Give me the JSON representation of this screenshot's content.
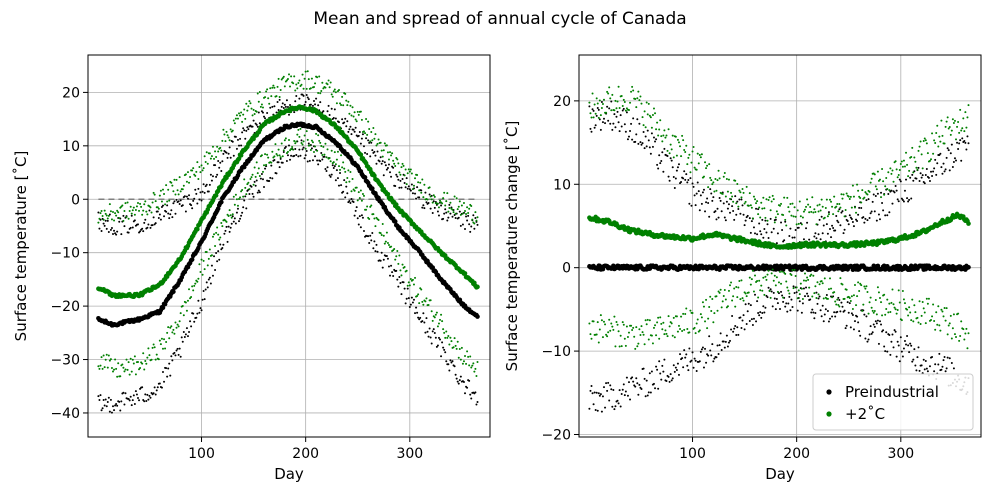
{
  "figure": {
    "title": "Mean and spread of annual cycle of Canada"
  },
  "chart_data": [
    {
      "type": "scatter",
      "xlabel": "Day",
      "ylabel": "Surface temperature [˚C]",
      "xlim": [
        -9,
        377
      ],
      "ylim": [
        -44.5,
        27
      ],
      "xticks": [
        100,
        200,
        300
      ],
      "yticks": [
        -40,
        -30,
        -20,
        -10,
        0,
        10,
        20
      ],
      "grid": true,
      "zero_line": {
        "y": 0,
        "style": "dashed",
        "color": "#808080"
      },
      "days": [
        1,
        365
      ],
      "series": [
        {
          "role": "mean",
          "color": "#000000",
          "anchors": [
            [
              1,
              -22.5
            ],
            [
              15,
              -23.5
            ],
            [
              40,
              -22.5
            ],
            [
              60,
              -21
            ],
            [
              80,
              -15
            ],
            [
              100,
              -8
            ],
            [
              120,
              0
            ],
            [
              140,
              6
            ],
            [
              160,
              11
            ],
            [
              180,
              13.5
            ],
            [
              195,
              14
            ],
            [
              210,
              13.5
            ],
            [
              230,
              10.5
            ],
            [
              250,
              6
            ],
            [
              270,
              0
            ],
            [
              290,
              -5.5
            ],
            [
              310,
              -10
            ],
            [
              330,
              -15
            ],
            [
              350,
              -19.5
            ],
            [
              365,
              -22
            ]
          ]
        },
        {
          "role": "upper",
          "color": "#000000",
          "anchors": [
            [
              1,
              -4
            ],
            [
              20,
              -5
            ],
            [
              40,
              -4.5
            ],
            [
              60,
              -3
            ],
            [
              80,
              -1
            ],
            [
              100,
              1
            ],
            [
              120,
              7
            ],
            [
              140,
              12
            ],
            [
              160,
              15.5
            ],
            [
              180,
              17.5
            ],
            [
              200,
              18
            ],
            [
              220,
              16.5
            ],
            [
              240,
              13
            ],
            [
              260,
              9.5
            ],
            [
              280,
              5
            ],
            [
              300,
              2
            ],
            [
              320,
              -1
            ],
            [
              340,
              -3
            ],
            [
              365,
              -5
            ]
          ]
        },
        {
          "role": "lower",
          "color": "#000000",
          "anchors": [
            [
              1,
              -38.5
            ],
            [
              20,
              -38
            ],
            [
              40,
              -37
            ],
            [
              60,
              -35
            ],
            [
              80,
              -28
            ],
            [
              100,
              -19
            ],
            [
              120,
              -8
            ],
            [
              140,
              -1
            ],
            [
              160,
              4
            ],
            [
              180,
              8
            ],
            [
              195,
              9.5
            ],
            [
              210,
              8
            ],
            [
              230,
              5
            ],
            [
              250,
              -3
            ],
            [
              270,
              -10
            ],
            [
              290,
              -16
            ],
            [
              310,
              -22
            ],
            [
              330,
              -28
            ],
            [
              350,
              -34
            ],
            [
              365,
              -37
            ]
          ]
        },
        {
          "role": "mean",
          "color": "#008000",
          "anchors": [
            [
              1,
              -16.5
            ],
            [
              15,
              -18
            ],
            [
              40,
              -18
            ],
            [
              60,
              -16
            ],
            [
              80,
              -11
            ],
            [
              100,
              -4
            ],
            [
              120,
              3
            ],
            [
              140,
              9
            ],
            [
              160,
              14
            ],
            [
              180,
              16.5
            ],
            [
              195,
              17.3
            ],
            [
              210,
              16.5
            ],
            [
              230,
              13.5
            ],
            [
              250,
              9
            ],
            [
              270,
              3
            ],
            [
              290,
              -2
            ],
            [
              310,
              -6
            ],
            [
              330,
              -10
            ],
            [
              350,
              -13.5
            ],
            [
              365,
              -16.5
            ]
          ]
        },
        {
          "role": "upper",
          "color": "#008000",
          "anchors": [
            [
              1,
              -3
            ],
            [
              20,
              -2.5
            ],
            [
              40,
              -2
            ],
            [
              60,
              0
            ],
            [
              80,
              3
            ],
            [
              100,
              6
            ],
            [
              120,
              11
            ],
            [
              140,
              16
            ],
            [
              160,
              19
            ],
            [
              180,
              21.5
            ],
            [
              200,
              22.5
            ],
            [
              220,
              21
            ],
            [
              240,
              18
            ],
            [
              260,
              13
            ],
            [
              280,
              8
            ],
            [
              300,
              4
            ],
            [
              320,
              1
            ],
            [
              340,
              -1
            ],
            [
              365,
              -3
            ]
          ]
        },
        {
          "role": "lower",
          "color": "#008000",
          "anchors": [
            [
              1,
              -30
            ],
            [
              20,
              -32
            ],
            [
              40,
              -31
            ],
            [
              60,
              -28
            ],
            [
              80,
              -22
            ],
            [
              100,
              -13
            ],
            [
              120,
              -5
            ],
            [
              140,
              2
            ],
            [
              160,
              7
            ],
            [
              180,
              10
            ],
            [
              195,
              11.5
            ],
            [
              210,
              10.5
            ],
            [
              230,
              8
            ],
            [
              250,
              1
            ],
            [
              270,
              -5
            ],
            [
              290,
              -12
            ],
            [
              310,
              -18
            ],
            [
              330,
              -23
            ],
            [
              350,
              -29
            ],
            [
              365,
              -32
            ]
          ]
        }
      ]
    },
    {
      "type": "scatter",
      "xlabel": "Day",
      "ylabel": "Surface temperature change [˚C]",
      "xlim": [
        -9,
        377
      ],
      "ylim": [
        -20.3,
        25.5
      ],
      "xticks": [
        100,
        200,
        300
      ],
      "yticks": [
        -20,
        -10,
        0,
        10,
        20
      ],
      "grid": true,
      "legend": {
        "position": "lower right",
        "entries": [
          {
            "label": "Preindustrial",
            "color": "#000000"
          },
          {
            "label": "+2˚C",
            "color": "#008000"
          }
        ]
      },
      "series": [
        {
          "role": "mean",
          "color": "#000000",
          "anchors": [
            [
              1,
              0
            ],
            [
              365,
              0
            ]
          ]
        },
        {
          "role": "upper",
          "color": "#000000",
          "anchors": [
            [
              1,
              18
            ],
            [
              20,
              18.5
            ],
            [
              40,
              17
            ],
            [
              60,
              14.5
            ],
            [
              80,
              11.5
            ],
            [
              100,
              9
            ],
            [
              120,
              7.5
            ],
            [
              140,
              7
            ],
            [
              160,
              5.5
            ],
            [
              180,
              4
            ],
            [
              200,
              3.5
            ],
            [
              220,
              4.5
            ],
            [
              240,
              5.5
            ],
            [
              260,
              6
            ],
            [
              280,
              7.5
            ],
            [
              300,
              9
            ],
            [
              320,
              10.5
            ],
            [
              340,
              12.5
            ],
            [
              365,
              15
            ]
          ]
        },
        {
          "role": "lower",
          "color": "#000000",
          "anchors": [
            [
              1,
              -16
            ],
            [
              20,
              -15.5
            ],
            [
              40,
              -14.5
            ],
            [
              60,
              -13.5
            ],
            [
              80,
              -12
            ],
            [
              100,
              -11
            ],
            [
              120,
              -9.5
            ],
            [
              140,
              -7
            ],
            [
              160,
              -5
            ],
            [
              180,
              -3.5
            ],
            [
              200,
              -3.5
            ],
            [
              220,
              -4.5
            ],
            [
              240,
              -5
            ],
            [
              260,
              -6.5
            ],
            [
              280,
              -8
            ],
            [
              300,
              -9.5
            ],
            [
              320,
              -11
            ],
            [
              340,
              -12
            ],
            [
              365,
              -14
            ]
          ]
        },
        {
          "role": "mean",
          "color": "#008000",
          "anchors": [
            [
              1,
              6
            ],
            [
              20,
              5.5
            ],
            [
              40,
              4.5
            ],
            [
              60,
              4
            ],
            [
              80,
              3.7
            ],
            [
              100,
              3.5
            ],
            [
              120,
              4
            ],
            [
              140,
              3.5
            ],
            [
              160,
              3
            ],
            [
              180,
              2.5
            ],
            [
              200,
              2.7
            ],
            [
              220,
              2.8
            ],
            [
              240,
              2.7
            ],
            [
              260,
              2.8
            ],
            [
              280,
              3
            ],
            [
              300,
              3.5
            ],
            [
              320,
              4.2
            ],
            [
              340,
              5.5
            ],
            [
              355,
              6.3
            ],
            [
              365,
              5.5
            ]
          ]
        },
        {
          "role": "upper",
          "color": "#008000",
          "anchors": [
            [
              1,
              19
            ],
            [
              20,
              20
            ],
            [
              40,
              20.5
            ],
            [
              60,
              18
            ],
            [
              80,
              15
            ],
            [
              100,
              13
            ],
            [
              120,
              10.5
            ],
            [
              140,
              9
            ],
            [
              160,
              7.5
            ],
            [
              180,
              7
            ],
            [
              200,
              6.5
            ],
            [
              220,
              7
            ],
            [
              240,
              7.5
            ],
            [
              260,
              8.5
            ],
            [
              280,
              10
            ],
            [
              300,
              11.5
            ],
            [
              320,
              13.5
            ],
            [
              340,
              16
            ],
            [
              365,
              18
            ]
          ]
        },
        {
          "role": "lower",
          "color": "#008000",
          "anchors": [
            [
              1,
              -7
            ],
            [
              20,
              -7.5
            ],
            [
              40,
              -8
            ],
            [
              60,
              -8
            ],
            [
              80,
              -7
            ],
            [
              100,
              -6.5
            ],
            [
              120,
              -5
            ],
            [
              140,
              -3
            ],
            [
              160,
              -2
            ],
            [
              180,
              -2
            ],
            [
              200,
              -2
            ],
            [
              220,
              -2.5
            ],
            [
              240,
              -3
            ],
            [
              260,
              -3.5
            ],
            [
              280,
              -4
            ],
            [
              300,
              -4.5
            ],
            [
              320,
              -5
            ],
            [
              340,
              -6
            ],
            [
              365,
              -8
            ]
          ]
        }
      ]
    }
  ]
}
